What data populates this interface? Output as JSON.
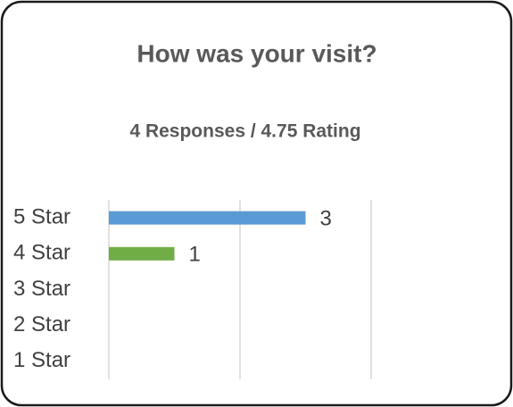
{
  "chart_data": {
    "type": "bar",
    "orientation": "horizontal",
    "title": "How was your visit?",
    "subtitle": "4 Responses / 4.75 Rating",
    "categories": [
      "5 Star",
      "4 Star",
      "3 Star",
      "2 Star",
      "1 Star"
    ],
    "values": [
      3,
      1,
      0,
      0,
      0
    ],
    "colors": [
      "#5b9bd5",
      "#70ad47",
      "#a5a5a5",
      "#ffc000",
      "#4472c4"
    ],
    "xlim": [
      0,
      4
    ],
    "xticks": [
      0,
      2,
      4
    ],
    "grid": true
  }
}
